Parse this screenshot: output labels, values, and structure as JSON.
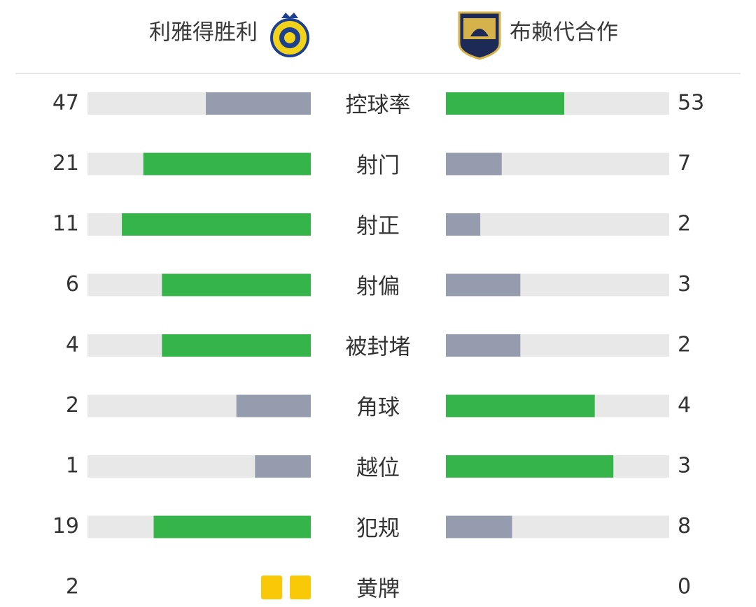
{
  "header": {
    "home": "利雅得胜利",
    "away": "布赖代合作"
  },
  "colors": {
    "leader": "#35b44a",
    "trailer": "#959cae",
    "track": "#e8e8e8",
    "card": "#f9c806"
  },
  "stats": {
    "rows": [
      {
        "label": "控球率",
        "home": 47,
        "away": 53
      },
      {
        "label": "射门",
        "home": 21,
        "away": 7
      },
      {
        "label": "射正",
        "home": 11,
        "away": 2
      },
      {
        "label": "射偏",
        "home": 6,
        "away": 3
      },
      {
        "label": "被封堵",
        "home": 4,
        "away": 2
      },
      {
        "label": "角球",
        "home": 2,
        "away": 4
      },
      {
        "label": "越位",
        "home": 1,
        "away": 3
      },
      {
        "label": "犯规",
        "home": 19,
        "away": 8
      },
      {
        "label": "黄牌",
        "home": 2,
        "away": 0,
        "cards": true
      }
    ]
  }
}
